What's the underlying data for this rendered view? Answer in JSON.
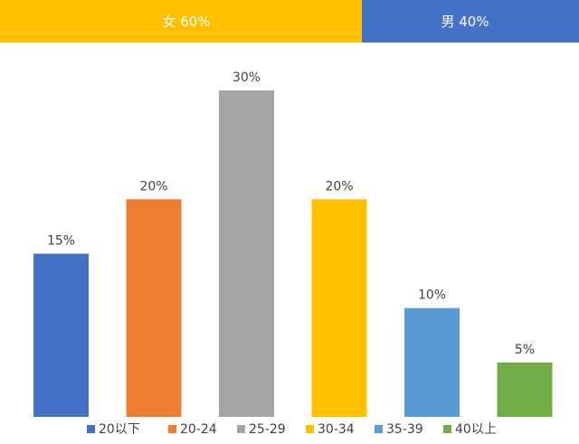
{
  "gender_split": {
    "female": {
      "label": "女 60%",
      "value": 60,
      "color": "#FFC000"
    },
    "male": {
      "label": "男 40%",
      "value": 40,
      "color": "#4472C4"
    }
  },
  "chart_data": {
    "type": "bar",
    "categories": [
      "20以下",
      "20-24",
      "25-29",
      "30-34",
      "35-39",
      "40以上"
    ],
    "values": [
      15,
      20,
      30,
      20,
      10,
      5
    ],
    "data_labels": [
      "15%",
      "20%",
      "30%",
      "20%",
      "10%",
      "5%"
    ],
    "colors": [
      "#4472C4",
      "#ED7D31",
      "#A5A5A5",
      "#FFC000",
      "#5B9BD5",
      "#70AD47"
    ],
    "ylim": [
      0,
      30
    ],
    "legend": "bottom",
    "grid": false,
    "title": "",
    "xlabel": "",
    "ylabel": ""
  }
}
